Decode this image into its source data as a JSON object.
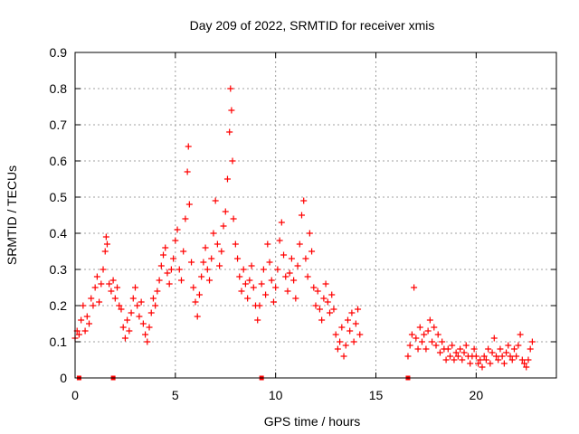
{
  "chart_data": {
    "type": "scatter",
    "title": "Day 209 of 2022, SRMTID for receiver xmis",
    "xlabel": "GPS time / hours",
    "ylabel": "SRMTID / TECUs",
    "xlim": [
      0,
      24
    ],
    "ylim": [
      0,
      0.9
    ],
    "x_ticks": [
      0,
      5,
      10,
      15,
      20
    ],
    "x_tick_labels": [
      "0",
      "5",
      "10",
      "15",
      "20"
    ],
    "y_ticks": [
      0,
      0.1,
      0.2,
      0.3,
      0.4,
      0.5,
      0.6,
      0.7,
      0.8,
      0.9
    ],
    "y_tick_labels": [
      "0",
      "0.1",
      "0.2",
      "0.3",
      "0.4",
      "0.5",
      "0.6",
      "0.7",
      "0.8",
      "0.9"
    ],
    "grid": true,
    "marker": "+",
    "series": [
      {
        "name": "SRMTID",
        "color": "#ff0000",
        "points": [
          [
            0.0,
            0.11
          ],
          [
            0.1,
            0.13
          ],
          [
            0.2,
            0.12
          ],
          [
            0.3,
            0.16
          ],
          [
            0.4,
            0.2
          ],
          [
            0.5,
            0.13
          ],
          [
            0.6,
            0.17
          ],
          [
            0.7,
            0.15
          ],
          [
            0.8,
            0.22
          ],
          [
            0.9,
            0.2
          ],
          [
            1.0,
            0.25
          ],
          [
            1.1,
            0.28
          ],
          [
            1.2,
            0.21
          ],
          [
            1.3,
            0.26
          ],
          [
            1.4,
            0.3
          ],
          [
            1.5,
            0.35
          ],
          [
            1.55,
            0.39
          ],
          [
            1.6,
            0.37
          ],
          [
            1.7,
            0.26
          ],
          [
            1.8,
            0.24
          ],
          [
            1.9,
            0.27
          ],
          [
            2.0,
            0.22
          ],
          [
            2.1,
            0.25
          ],
          [
            2.2,
            0.2
          ],
          [
            2.3,
            0.19
          ],
          [
            2.4,
            0.14
          ],
          [
            2.5,
            0.11
          ],
          [
            2.6,
            0.16
          ],
          [
            2.7,
            0.13
          ],
          [
            2.8,
            0.18
          ],
          [
            2.9,
            0.22
          ],
          [
            3.0,
            0.25
          ],
          [
            3.1,
            0.2
          ],
          [
            3.2,
            0.17
          ],
          [
            3.3,
            0.21
          ],
          [
            3.4,
            0.15
          ],
          [
            3.5,
            0.12
          ],
          [
            3.6,
            0.1
          ],
          [
            3.7,
            0.14
          ],
          [
            3.8,
            0.18
          ],
          [
            3.9,
            0.22
          ],
          [
            4.0,
            0.2
          ],
          [
            4.1,
            0.24
          ],
          [
            4.2,
            0.27
          ],
          [
            4.3,
            0.31
          ],
          [
            4.4,
            0.34
          ],
          [
            4.5,
            0.36
          ],
          [
            4.6,
            0.29
          ],
          [
            4.7,
            0.26
          ],
          [
            4.8,
            0.3
          ],
          [
            4.9,
            0.33
          ],
          [
            5.0,
            0.38
          ],
          [
            5.1,
            0.41
          ],
          [
            5.2,
            0.3
          ],
          [
            5.3,
            0.27
          ],
          [
            5.4,
            0.35
          ],
          [
            5.5,
            0.44
          ],
          [
            5.6,
            0.57
          ],
          [
            5.65,
            0.64
          ],
          [
            5.7,
            0.48
          ],
          [
            5.8,
            0.32
          ],
          [
            5.9,
            0.25
          ],
          [
            6.0,
            0.21
          ],
          [
            6.1,
            0.17
          ],
          [
            6.2,
            0.23
          ],
          [
            6.3,
            0.28
          ],
          [
            6.4,
            0.32
          ],
          [
            6.5,
            0.36
          ],
          [
            6.6,
            0.3
          ],
          [
            6.7,
            0.27
          ],
          [
            6.8,
            0.33
          ],
          [
            6.9,
            0.4
          ],
          [
            7.0,
            0.49
          ],
          [
            7.1,
            0.37
          ],
          [
            7.2,
            0.31
          ],
          [
            7.3,
            0.35
          ],
          [
            7.4,
            0.42
          ],
          [
            7.5,
            0.46
          ],
          [
            7.6,
            0.55
          ],
          [
            7.7,
            0.68
          ],
          [
            7.75,
            0.8
          ],
          [
            7.8,
            0.74
          ],
          [
            7.85,
            0.6
          ],
          [
            7.9,
            0.44
          ],
          [
            8.0,
            0.37
          ],
          [
            8.1,
            0.33
          ],
          [
            8.2,
            0.28
          ],
          [
            8.3,
            0.24
          ],
          [
            8.4,
            0.3
          ],
          [
            8.5,
            0.26
          ],
          [
            8.6,
            0.22
          ],
          [
            8.7,
            0.27
          ],
          [
            8.8,
            0.31
          ],
          [
            8.9,
            0.25
          ],
          [
            9.0,
            0.2
          ],
          [
            9.1,
            0.16
          ],
          [
            9.2,
            0.2
          ],
          [
            9.3,
            0.26
          ],
          [
            9.4,
            0.3
          ],
          [
            9.5,
            0.23
          ],
          [
            9.6,
            0.37
          ],
          [
            9.7,
            0.32
          ],
          [
            9.8,
            0.27
          ],
          [
            9.9,
            0.21
          ],
          [
            10.0,
            0.25
          ],
          [
            10.1,
            0.3
          ],
          [
            10.2,
            0.38
          ],
          [
            10.3,
            0.43
          ],
          [
            10.4,
            0.34
          ],
          [
            10.5,
            0.28
          ],
          [
            10.6,
            0.24
          ],
          [
            10.7,
            0.29
          ],
          [
            10.8,
            0.33
          ],
          [
            10.9,
            0.27
          ],
          [
            11.0,
            0.22
          ],
          [
            11.1,
            0.31
          ],
          [
            11.2,
            0.37
          ],
          [
            11.3,
            0.45
          ],
          [
            11.4,
            0.49
          ],
          [
            11.5,
            0.33
          ],
          [
            11.6,
            0.28
          ],
          [
            11.7,
            0.4
          ],
          [
            11.8,
            0.35
          ],
          [
            11.9,
            0.25
          ],
          [
            12.0,
            0.2
          ],
          [
            12.1,
            0.24
          ],
          [
            12.2,
            0.19
          ],
          [
            12.3,
            0.16
          ],
          [
            12.4,
            0.22
          ],
          [
            12.5,
            0.26
          ],
          [
            12.6,
            0.21
          ],
          [
            12.7,
            0.18
          ],
          [
            12.8,
            0.23
          ],
          [
            12.9,
            0.19
          ],
          [
            13.0,
            0.12
          ],
          [
            13.1,
            0.08
          ],
          [
            13.2,
            0.1
          ],
          [
            13.3,
            0.14
          ],
          [
            13.4,
            0.06
          ],
          [
            13.5,
            0.09
          ],
          [
            13.6,
            0.16
          ],
          [
            13.7,
            0.13
          ],
          [
            13.8,
            0.18
          ],
          [
            13.9,
            0.1
          ],
          [
            14.0,
            0.15
          ],
          [
            14.1,
            0.19
          ],
          [
            14.2,
            0.12
          ],
          [
            16.6,
            0.06
          ],
          [
            16.7,
            0.09
          ],
          [
            16.8,
            0.12
          ],
          [
            16.9,
            0.25
          ],
          [
            17.0,
            0.11
          ],
          [
            17.1,
            0.08
          ],
          [
            17.2,
            0.14
          ],
          [
            17.3,
            0.1
          ],
          [
            17.4,
            0.12
          ],
          [
            17.5,
            0.08
          ],
          [
            17.6,
            0.13
          ],
          [
            17.7,
            0.16
          ],
          [
            17.8,
            0.1
          ],
          [
            17.9,
            0.14
          ],
          [
            18.0,
            0.09
          ],
          [
            18.1,
            0.12
          ],
          [
            18.2,
            0.07
          ],
          [
            18.3,
            0.1
          ],
          [
            18.4,
            0.08
          ],
          [
            18.5,
            0.05
          ],
          [
            18.6,
            0.08
          ],
          [
            18.7,
            0.06
          ],
          [
            18.8,
            0.09
          ],
          [
            18.9,
            0.05
          ],
          [
            19.0,
            0.07
          ],
          [
            19.1,
            0.06
          ],
          [
            19.2,
            0.08
          ],
          [
            19.3,
            0.05
          ],
          [
            19.4,
            0.07
          ],
          [
            19.5,
            0.09
          ],
          [
            19.6,
            0.06
          ],
          [
            19.7,
            0.04
          ],
          [
            19.8,
            0.06
          ],
          [
            19.9,
            0.08
          ],
          [
            20.0,
            0.06
          ],
          [
            20.1,
            0.04
          ],
          [
            20.2,
            0.05
          ],
          [
            20.3,
            0.03
          ],
          [
            20.4,
            0.06
          ],
          [
            20.5,
            0.05
          ],
          [
            20.6,
            0.08
          ],
          [
            20.7,
            0.04
          ],
          [
            20.8,
            0.07
          ],
          [
            20.9,
            0.11
          ],
          [
            21.0,
            0.06
          ],
          [
            21.1,
            0.05
          ],
          [
            21.2,
            0.08
          ],
          [
            21.3,
            0.06
          ],
          [
            21.4,
            0.04
          ],
          [
            21.5,
            0.07
          ],
          [
            21.6,
            0.09
          ],
          [
            21.7,
            0.06
          ],
          [
            21.8,
            0.05
          ],
          [
            21.9,
            0.08
          ],
          [
            22.0,
            0.06
          ],
          [
            22.1,
            0.09
          ],
          [
            22.2,
            0.12
          ],
          [
            22.3,
            0.05
          ],
          [
            22.4,
            0.04
          ],
          [
            22.5,
            0.03
          ],
          [
            22.6,
            0.05
          ],
          [
            22.7,
            0.08
          ],
          [
            22.8,
            0.1
          ]
        ]
      }
    ],
    "zero_markers_x": [
      0.2,
      1.9,
      9.3,
      16.6
    ]
  }
}
